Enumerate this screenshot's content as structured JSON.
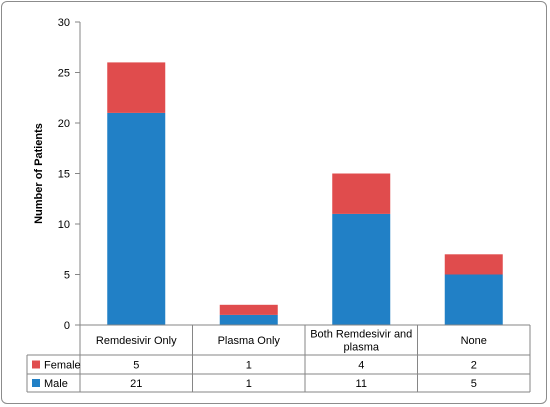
{
  "chart_data": {
    "type": "bar",
    "stacked": true,
    "title": "",
    "xlabel": "",
    "ylabel": "Number of Patients",
    "ylim": [
      0,
      30
    ],
    "yticks": [
      0,
      5,
      10,
      15,
      20,
      25,
      30
    ],
    "grid": false,
    "legend": "data-table",
    "categories": [
      [
        "Remdesivir Only"
      ],
      [
        "Plasma Only"
      ],
      [
        "Both Remdesivir and",
        "plasma"
      ],
      [
        "None"
      ]
    ],
    "series": [
      {
        "name": "Male",
        "color": "#2180c6",
        "values": [
          21,
          1,
          11,
          5
        ]
      },
      {
        "name": "Female",
        "color": "#e04c4d",
        "values": [
          5,
          1,
          4,
          2
        ]
      }
    ],
    "table_order": [
      "Female",
      "Male"
    ]
  }
}
